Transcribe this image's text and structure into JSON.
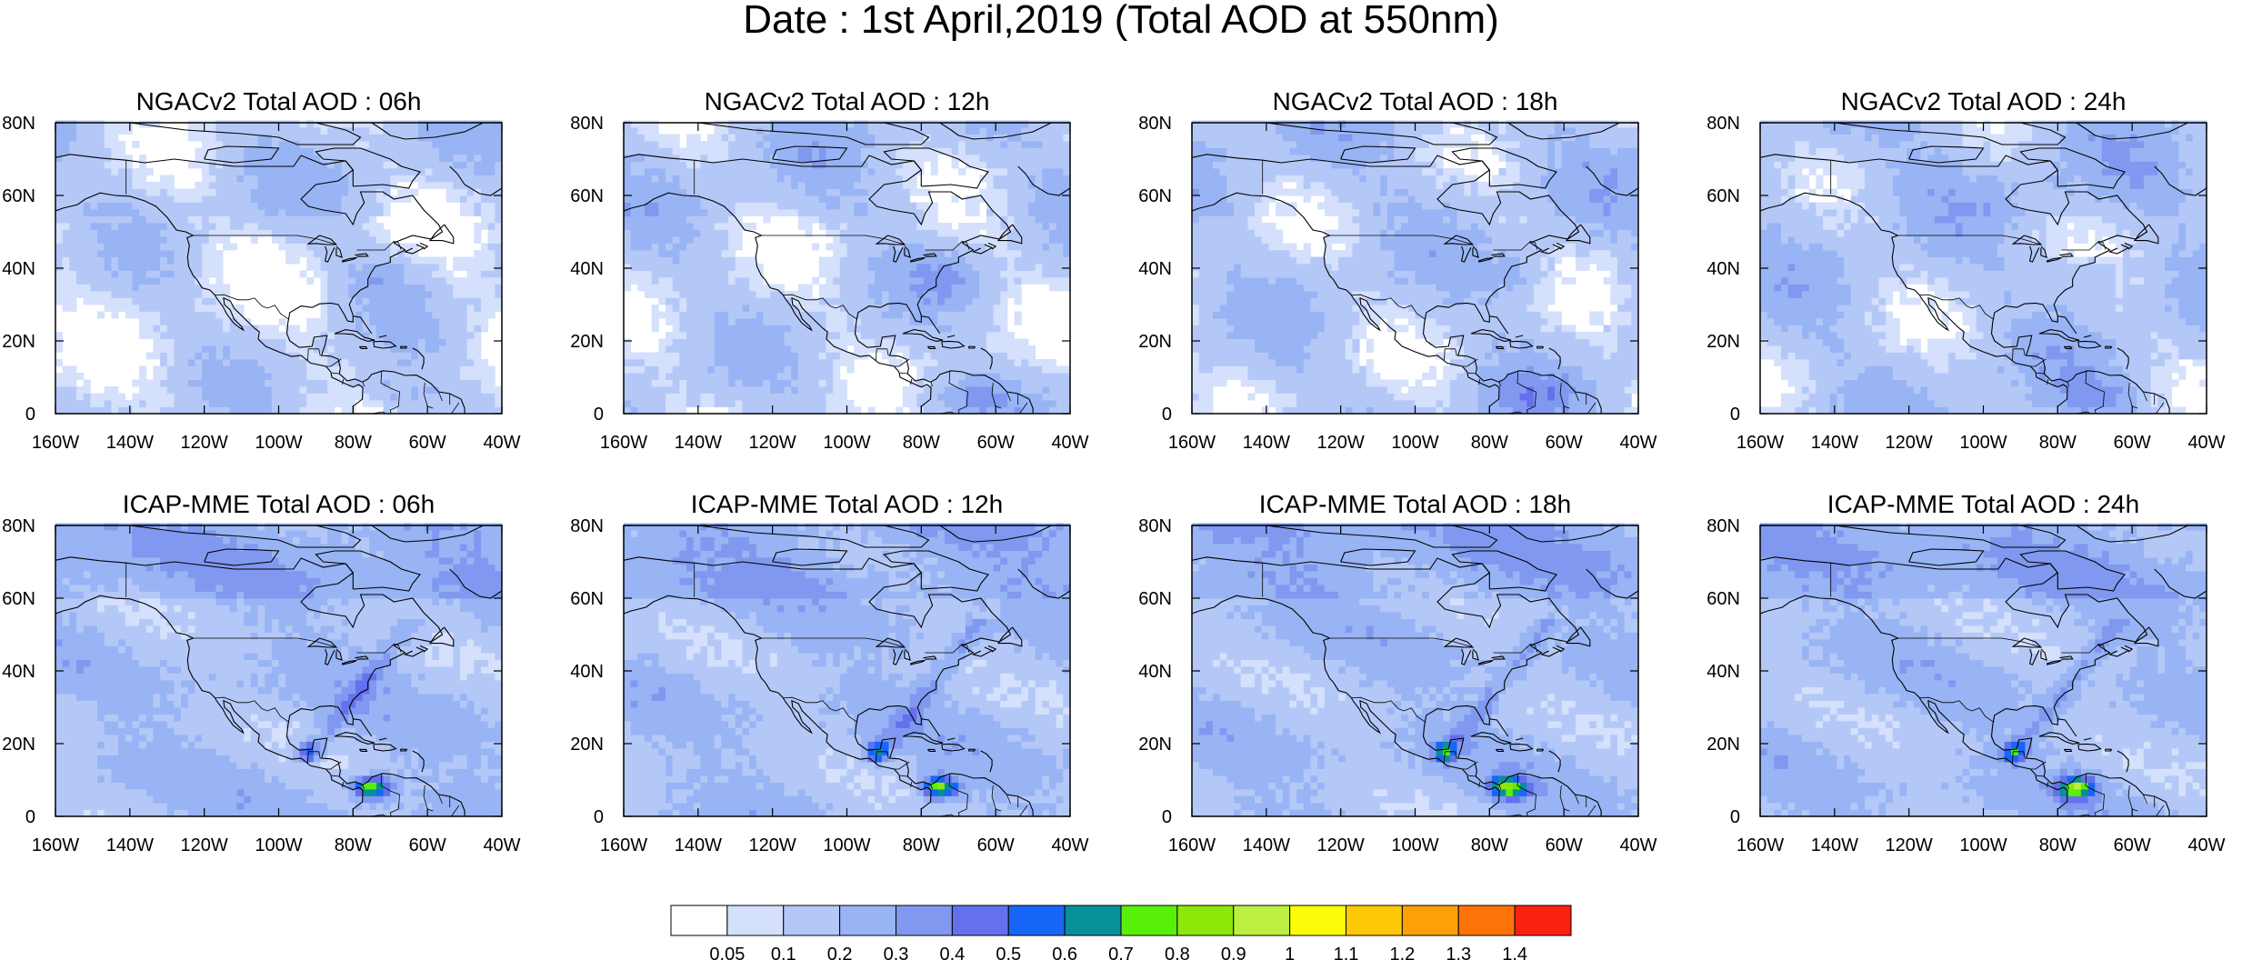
{
  "figure": {
    "title": "Date : 1st April,2019 (Total AOD at 550nm)"
  },
  "chart_data": {
    "type": "heatmap",
    "variable": "Total AOD at 550nm",
    "date": "1st April,2019",
    "lon_range": [
      -160,
      -40
    ],
    "lat_range": [
      0,
      80
    ],
    "x_ticks": [
      "160W",
      "140W",
      "120W",
      "100W",
      "80W",
      "60W",
      "40W"
    ],
    "y_ticks": [
      "80N",
      "60N",
      "40N",
      "20N",
      "0"
    ],
    "panels": [
      {
        "title": "NGACv2 Total AOD : 06h",
        "model": "NGACv2",
        "hour": "06h",
        "max_aod": 0.4
      },
      {
        "title": "NGACv2 Total AOD : 12h",
        "model": "NGACv2",
        "hour": "12h",
        "max_aod": 0.4
      },
      {
        "title": "NGACv2 Total AOD : 18h",
        "model": "NGACv2",
        "hour": "18h",
        "max_aod": 0.4
      },
      {
        "title": "NGACv2 Total AOD : 24h",
        "model": "NGACv2",
        "hour": "24h",
        "max_aod": 0.4
      },
      {
        "title": "ICAP-MME Total AOD : 06h",
        "model": "ICAP-MME",
        "hour": "06h",
        "max_aod": 1.0
      },
      {
        "title": "ICAP-MME Total AOD : 12h",
        "model": "ICAP-MME",
        "hour": "12h",
        "max_aod": 1.1
      },
      {
        "title": "ICAP-MME Total AOD : 18h",
        "model": "ICAP-MME",
        "hour": "18h",
        "max_aod": 0.9
      },
      {
        "title": "ICAP-MME Total AOD : 24h",
        "model": "ICAP-MME",
        "hour": "24h",
        "max_aod": 0.9
      }
    ],
    "colorbar": {
      "levels": [
        "0.05",
        "0.1",
        "0.2",
        "0.3",
        "0.4",
        "0.5",
        "0.6",
        "0.7",
        "0.8",
        "0.9",
        "1",
        "1.1",
        "1.2",
        "1.3",
        "1.4"
      ],
      "colors": [
        "#ffffff",
        "#d4e0fc",
        "#b4c8f8",
        "#98b4f4",
        "#8098f0",
        "#6470ec",
        "#1866f8",
        "#089098",
        "#58f008",
        "#8ce808",
        "#bcf040",
        "#fcfc08",
        "#fcc808",
        "#fca008",
        "#fc7408",
        "#fc2010"
      ]
    }
  }
}
